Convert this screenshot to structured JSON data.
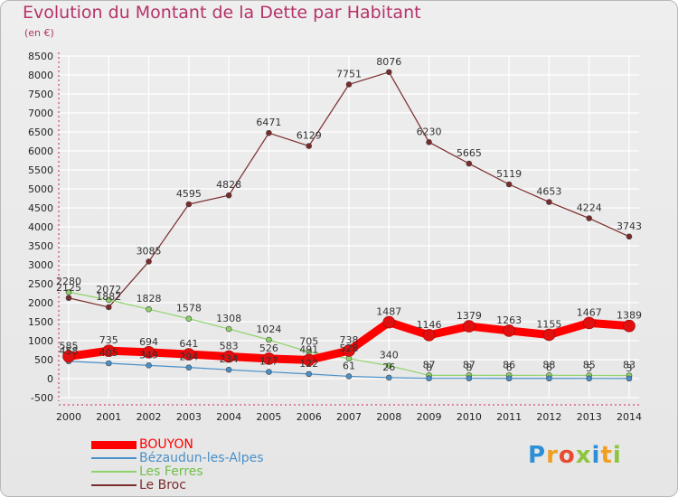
{
  "header": {
    "title": "Evolution du Montant de la Dette par Habitant",
    "subtitle": "(en €)"
  },
  "logo": {
    "text": "Proxiti",
    "letter_colors": [
      "#2d8fd5",
      "#f0a020",
      "#e84c30",
      "#8cc63f",
      "#2d8fd5",
      "#f0a020",
      "#8cc63f"
    ]
  },
  "colors": {
    "title": "#b5336a",
    "axis": "#cc2255",
    "grid": "#ffffff",
    "bouyon": "#ff0000",
    "bezaudun": "#4a90c8",
    "les_ferres": "#8ed36a",
    "le_broc": "#7a2b2b"
  },
  "chart_data": {
    "type": "line",
    "title": "Evolution du Montant de la Dette par Habitant",
    "subtitle": "(en €)",
    "xlabel": "",
    "ylabel": "",
    "x": [
      "2000",
      "2001",
      "2002",
      "2003",
      "2004",
      "2005",
      "2006",
      "2007",
      "2008",
      "2009",
      "2010",
      "2011",
      "2012",
      "2013",
      "2014"
    ],
    "ylim": [
      -500,
      8500
    ],
    "yticks": [
      -500,
      0,
      500,
      1000,
      1500,
      2000,
      2500,
      3000,
      3500,
      4000,
      4500,
      5000,
      5500,
      6000,
      6500,
      7000,
      7500,
      8000,
      8500
    ],
    "grid": true,
    "legend_position": "bottom-left",
    "series": [
      {
        "name": "BOUYON",
        "key": "bouyon",
        "color": "#ff0000",
        "width": 9,
        "values": [
          585,
          735,
          694,
          641,
          583,
          526,
          491,
          738,
          1487,
          1146,
          1379,
          1263,
          1155,
          1467,
          1389
        ],
        "labels": [
          "585",
          "735",
          "694",
          "641",
          "583",
          "526",
          "491",
          "738",
          "1487",
          "1146",
          "1379",
          "1263",
          "1155",
          "1467",
          "1389"
        ],
        "label_side": "top"
      },
      {
        "name": "Bézaudun-les-Alpes",
        "key": "bezaudun",
        "color": "#4a90c8",
        "width": 1.2,
        "values": [
          458,
          405,
          349,
          294,
          234,
          177,
          122,
          61,
          26,
          8,
          8,
          6,
          6,
          5,
          3
        ],
        "labels": [
          "458",
          "405",
          "349",
          "294",
          "234",
          "177",
          "122",
          "61",
          "26",
          "8",
          "8",
          "6",
          "6",
          "5",
          "3"
        ],
        "label_side": "top"
      },
      {
        "name": "Les Ferres",
        "key": "les_ferres",
        "color": "#8ed36a",
        "width": 1.2,
        "values": [
          2280,
          2072,
          1828,
          1578,
          1308,
          1024,
          705,
          528,
          340,
          87,
          87,
          86,
          88,
          85,
          83
        ],
        "labels": [
          "2280",
          "2072",
          "1828",
          "1578",
          "1308",
          "1024",
          "705",
          "528",
          "340",
          "87",
          "87",
          "86",
          "88",
          "85",
          "83"
        ],
        "label_side": "top"
      },
      {
        "name": "Le Broc",
        "key": "le_broc",
        "color": "#7a2b2b",
        "width": 1.2,
        "values": [
          2125,
          1882,
          3085,
          4595,
          4828,
          6471,
          6129,
          7751,
          8076,
          6230,
          5665,
          5119,
          4653,
          4224,
          3743
        ],
        "labels": [
          "2125",
          "1882",
          "3085",
          "4595",
          "4828",
          "6471",
          "6129",
          "7751",
          "8076",
          "6230",
          "5665",
          "5119",
          "4653",
          "4224",
          "3743"
        ],
        "label_side": "top"
      }
    ]
  }
}
